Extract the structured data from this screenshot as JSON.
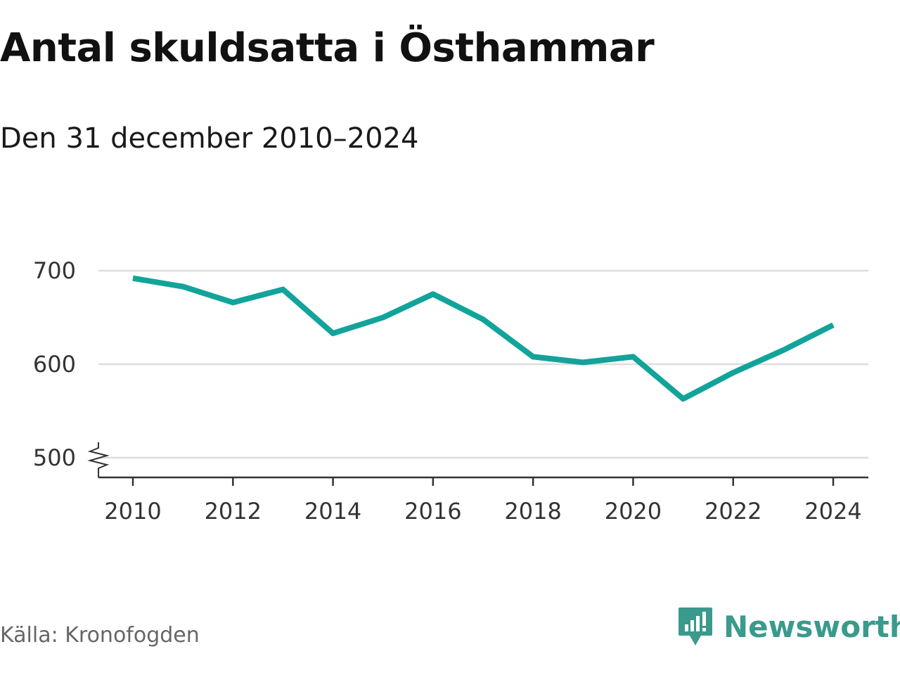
{
  "title": "Antal skuldsatta i Östhammar",
  "subtitle": "Den 31 december 2010–2024",
  "source": "Källa: Kronofogden",
  "brand": "Newsworthy",
  "colors": {
    "line": "#12a39a",
    "grid": "#dddddd",
    "axis": "#333333",
    "brand": "#3a9a8c"
  },
  "chart_data": {
    "type": "line",
    "title": "Antal skuldsatta i Östhammar",
    "subtitle": "Den 31 december 2010–2024",
    "x": [
      2010,
      2011,
      2012,
      2013,
      2014,
      2015,
      2016,
      2017,
      2018,
      2019,
      2020,
      2021,
      2022,
      2023,
      2024
    ],
    "series": [
      {
        "values": [
          692,
          683,
          666,
          680,
          633,
          650,
          675,
          648,
          608,
          602,
          608,
          563,
          591,
          615,
          642
        ]
      }
    ],
    "xticks": [
      "2010",
      "2012",
      "2014",
      "2016",
      "2018",
      "2020",
      "2022",
      "2024"
    ],
    "yticks": [
      "500",
      "600",
      "700"
    ],
    "xlim": [
      2010,
      2024
    ],
    "ylim": [
      500,
      700
    ],
    "y_axis_break": true,
    "grid": true,
    "xlabel": "",
    "ylabel": ""
  }
}
